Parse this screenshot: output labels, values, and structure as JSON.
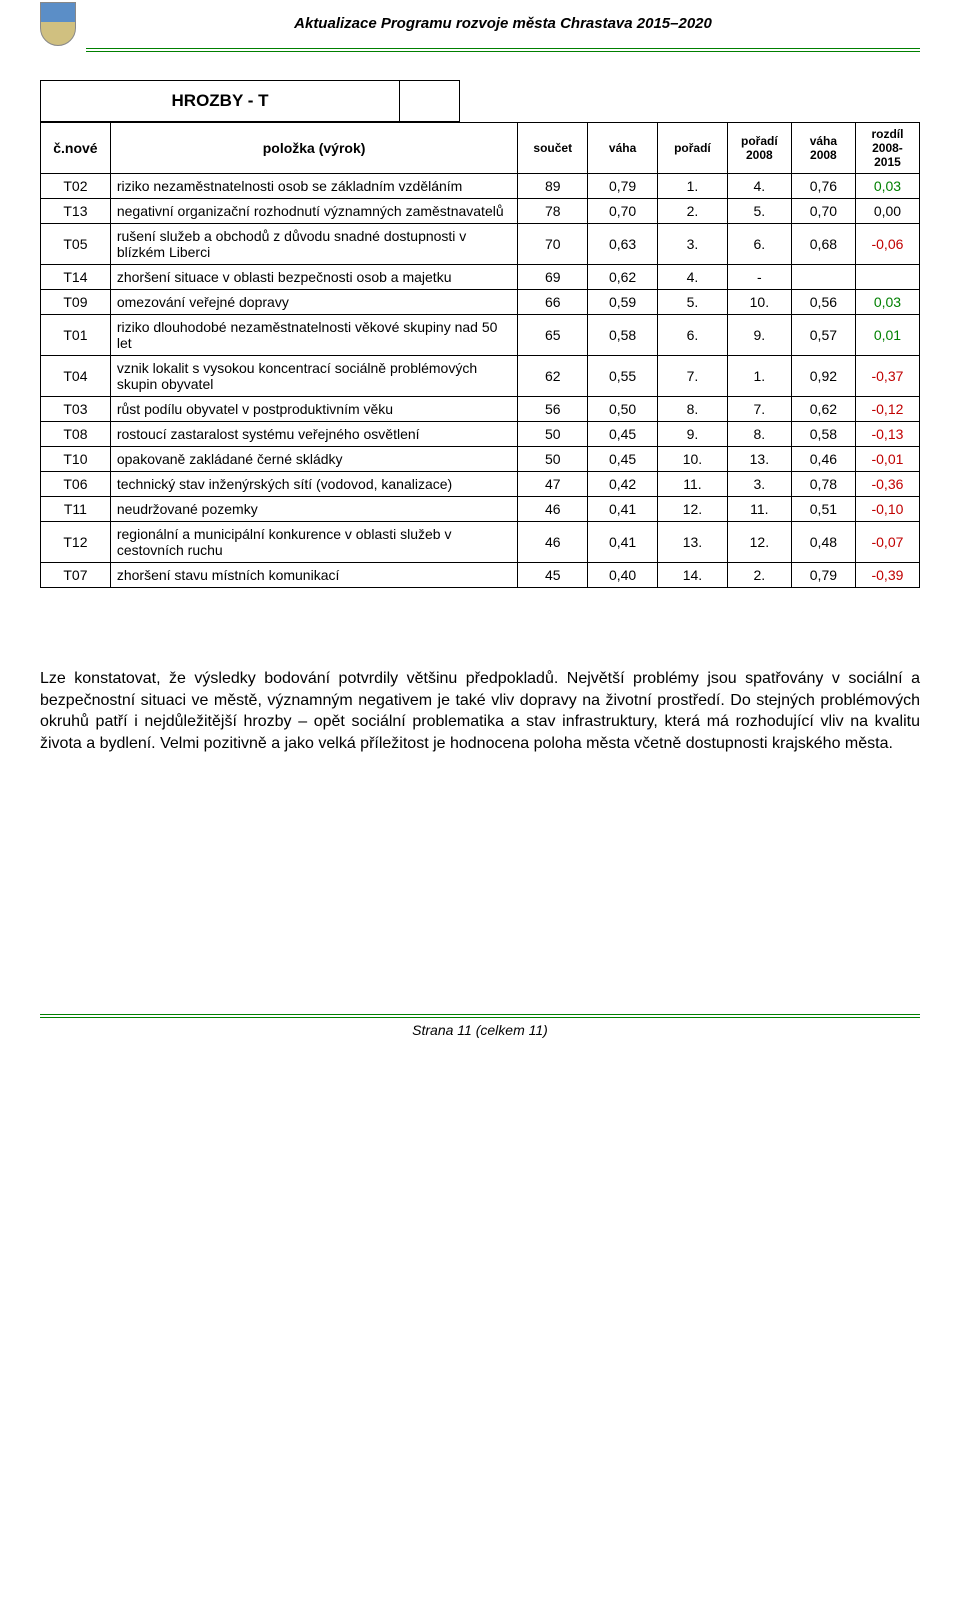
{
  "doc_title": "Aktualizace Programu rozvoje města Chrastava 2015–2020",
  "section_title": "HROZBY - T",
  "columns": {
    "c1": "č.nové",
    "c2": "položka (výrok)",
    "c3": "součet",
    "c4": "váha",
    "c5": "pořadí",
    "c6": "pořadí 2008",
    "c7": "váha 2008",
    "c8": "rozdíl 2008-2015"
  },
  "rows": [
    {
      "code": "T02",
      "desc": "riziko nezaměstnatelnosti osob se základním vzděláním",
      "sum": "89",
      "w": "0,79",
      "ord": "1.",
      "ord08": "4.",
      "w08": "0,76",
      "diff": "0,03",
      "diffcls": "green"
    },
    {
      "code": "T13",
      "desc": "negativní organizační rozhodnutí významných zaměstnavatelů",
      "sum": "78",
      "w": "0,70",
      "ord": "2.",
      "ord08": "5.",
      "w08": "0,70",
      "diff": "0,00",
      "diffcls": ""
    },
    {
      "code": "T05",
      "desc": "rušení služeb a obchodů z důvodu snadné dostupnosti v blízkém Liberci",
      "sum": "70",
      "w": "0,63",
      "ord": "3.",
      "ord08": "6.",
      "w08": "0,68",
      "diff": "-0,06",
      "diffcls": "red"
    },
    {
      "code": "T14",
      "desc": "zhoršení situace v oblasti bezpečnosti osob a majetku",
      "sum": "69",
      "w": "0,62",
      "ord": "4.",
      "ord08": "-",
      "w08": "",
      "diff": "",
      "diffcls": ""
    },
    {
      "code": "T09",
      "desc": "omezování veřejné dopravy",
      "sum": "66",
      "w": "0,59",
      "ord": "5.",
      "ord08": "10.",
      "w08": "0,56",
      "diff": "0,03",
      "diffcls": "green"
    },
    {
      "code": "T01",
      "desc": "riziko dlouhodobé nezaměstnatelnosti věkové skupiny nad 50 let",
      "sum": "65",
      "w": "0,58",
      "ord": "6.",
      "ord08": "9.",
      "w08": "0,57",
      "diff": "0,01",
      "diffcls": "green"
    },
    {
      "code": "T04",
      "desc": "vznik lokalit s vysokou koncentrací sociálně problémových skupin obyvatel",
      "sum": "62",
      "w": "0,55",
      "ord": "7.",
      "ord08": "1.",
      "w08": "0,92",
      "diff": "-0,37",
      "diffcls": "red"
    },
    {
      "code": "T03",
      "desc": "růst podílu obyvatel v postproduktivním věku",
      "sum": "56",
      "w": "0,50",
      "ord": "8.",
      "ord08": "7.",
      "w08": "0,62",
      "diff": "-0,12",
      "diffcls": "red"
    },
    {
      "code": "T08",
      "desc": "rostoucí zastaralost systému veřejného osvětlení",
      "sum": "50",
      "w": "0,45",
      "ord": "9.",
      "ord08": "8.",
      "w08": "0,58",
      "diff": "-0,13",
      "diffcls": "red"
    },
    {
      "code": "T10",
      "desc": "opakovaně zakládané černé skládky",
      "sum": "50",
      "w": "0,45",
      "ord": "10.",
      "ord08": "13.",
      "w08": "0,46",
      "diff": "-0,01",
      "diffcls": "red"
    },
    {
      "code": "T06",
      "desc": "technický stav inženýrských sítí (vodovod, kanalizace)",
      "sum": "47",
      "w": "0,42",
      "ord": "11.",
      "ord08": "3.",
      "w08": "0,78",
      "diff": "-0,36",
      "diffcls": "red"
    },
    {
      "code": "T11",
      "desc": "neudržované pozemky",
      "sum": "46",
      "w": "0,41",
      "ord": "12.",
      "ord08": "11.",
      "w08": "0,51",
      "diff": "-0,10",
      "diffcls": "red"
    },
    {
      "code": "T12",
      "desc": "regionální a municipální konkurence v oblasti služeb v cestovních ruchu",
      "sum": "46",
      "w": "0,41",
      "ord": "13.",
      "ord08": "12.",
      "w08": "0,48",
      "diff": "-0,07",
      "diffcls": "red"
    },
    {
      "code": "T07",
      "desc": "zhoršení stavu místních komunikací",
      "sum": "45",
      "w": "0,40",
      "ord": "14.",
      "ord08": "2.",
      "w08": "0,79",
      "diff": "-0,39",
      "diffcls": "red"
    }
  ],
  "body_text": "Lze konstatovat, že výsledky bodování potvrdily většinu předpokladů. Největší problémy jsou spatřovány v sociální a bezpečnostní situaci ve městě, významným negativem je také vliv dopravy na životní prostředí. Do stejných problémových okruhů patří i nejdůležitější hrozby – opět sociální problematika a stav infrastruktury, která má rozhodující vliv na kvalitu života a bydlení. Velmi pozitivně a jako velká příležitost je hodnocena poloha města včetně dostupnosti krajského města.",
  "footer": "Strana 11 (celkem 11)",
  "colors": {
    "green_rule": "#008000",
    "red_text": "#c00000",
    "green_text": "#008000"
  }
}
